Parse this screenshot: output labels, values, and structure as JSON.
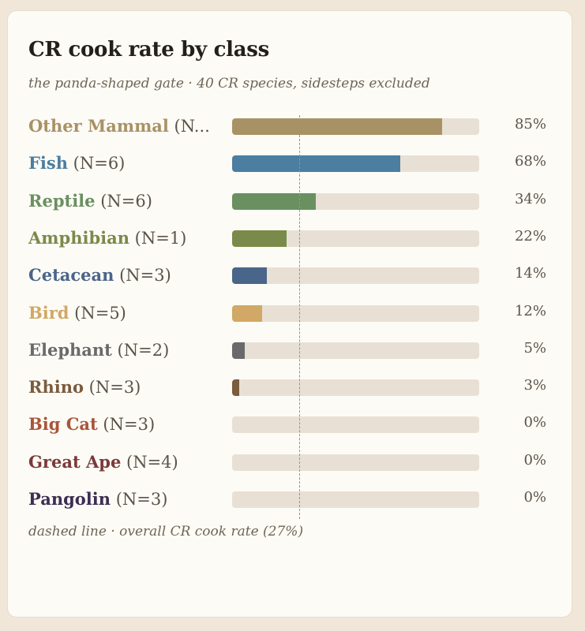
{
  "chart_data": {
    "type": "bar",
    "orientation": "horizontal",
    "title": "CR cook rate by class",
    "subtitle": "the panda-shaped gate · 40 CR species, sidesteps excluded",
    "xlim": [
      0,
      100
    ],
    "reference_line": {
      "value": 27,
      "label": "dashed line · overall CR cook rate (27%)"
    },
    "categories": [
      {
        "name": "Other Mammal",
        "n_label": "(N...",
        "value": 85,
        "value_label": "85%",
        "color": "#a89265"
      },
      {
        "name": "Fish",
        "n_label": "(N=6)",
        "value": 68,
        "value_label": "68%",
        "color": "#4b7ea0"
      },
      {
        "name": "Reptile",
        "n_label": "(N=6)",
        "value": 34,
        "value_label": "34%",
        "color": "#6a9060"
      },
      {
        "name": "Amphibian",
        "n_label": "(N=1)",
        "value": 22,
        "value_label": "22%",
        "color": "#7a8a4a"
      },
      {
        "name": "Cetacean",
        "n_label": "(N=3)",
        "value": 14,
        "value_label": "14%",
        "color": "#4a658a"
      },
      {
        "name": "Bird",
        "n_label": "(N=5)",
        "value": 12,
        "value_label": "12%",
        "color": "#d1a865"
      },
      {
        "name": "Elephant",
        "n_label": "(N=2)",
        "value": 5,
        "value_label": "5%",
        "color": "#6a6a6a"
      },
      {
        "name": "Rhino",
        "n_label": "(N=3)",
        "value": 3,
        "value_label": "3%",
        "color": "#7a5c3e"
      },
      {
        "name": "Big Cat",
        "n_label": "(N=3)",
        "value": 0,
        "value_label": "0%",
        "color": "#a8553a"
      },
      {
        "name": "Great Ape",
        "n_label": "(N=4)",
        "value": 0,
        "value_label": "0%",
        "color": "#7a3a3a"
      },
      {
        "name": "Pangolin",
        "n_label": "(N=3)",
        "value": 0,
        "value_label": "0%",
        "color": "#3d2e52"
      }
    ]
  }
}
